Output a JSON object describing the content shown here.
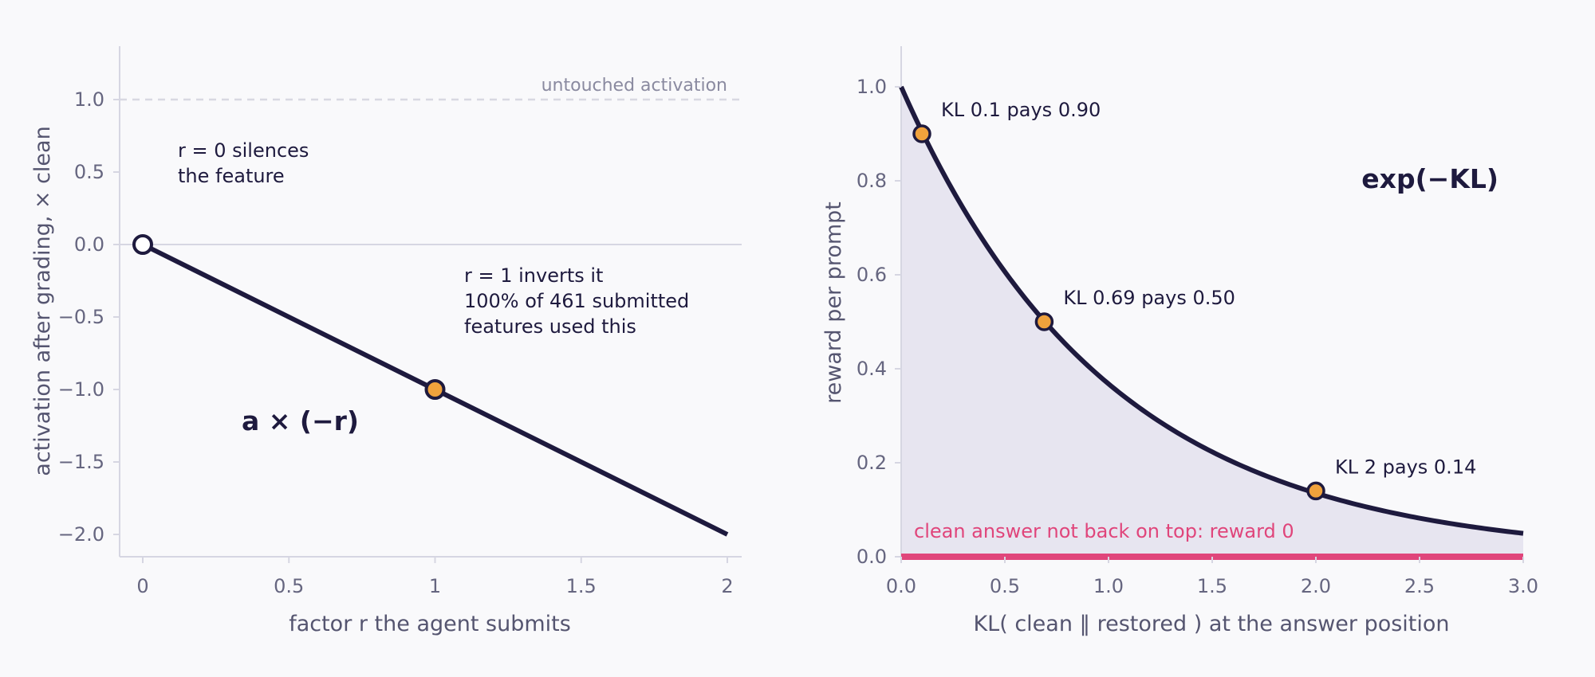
{
  "chart_data": [
    {
      "type": "line",
      "function": "y = -x",
      "x_range": [
        0,
        2
      ],
      "xlim": [
        -0.08,
        2.05
      ],
      "ylim": [
        -2.15,
        1.35
      ],
      "xlabel": "factor r the agent submits",
      "ylabel": "activation after grading, × clean",
      "xticks": [
        0,
        0.5,
        1,
        1.5,
        2
      ],
      "xtick_labels": [
        "0",
        "0.5",
        "1",
        "1.5",
        "2"
      ],
      "yticks": [
        1.0,
        0.5,
        0.0,
        -0.5,
        -1.0,
        -1.5,
        -2.0
      ],
      "ytick_labels": [
        "1.0",
        "0.5",
        "0.0",
        "−0.5",
        "−1.0",
        "−1.5",
        "−2.0"
      ],
      "series": [
        {
          "x": [
            0,
            2
          ],
          "y": [
            0,
            -2
          ]
        }
      ],
      "points": [
        {
          "x": 0,
          "y": 0,
          "style": "open"
        },
        {
          "x": 1,
          "y": -1,
          "style": "filled"
        }
      ],
      "reference_line": {
        "y": 1.0,
        "label": "untouched activation"
      },
      "zero_line": {
        "y": 0
      },
      "formula": "a × (−r)",
      "annotations": [
        {
          "lines": [
            "r = 0 silences",
            "the feature"
          ]
        },
        {
          "lines": [
            "r = 1 inverts it",
            "100% of 461 submitted",
            "features used this"
          ]
        }
      ],
      "grid": false
    },
    {
      "type": "area",
      "function": "y = exp(-x)",
      "x_range": [
        0,
        3
      ],
      "xlim": [
        0,
        3
      ],
      "ylim": [
        0,
        1.06
      ],
      "xlabel": "KL( clean ‖ restored ) at the answer position",
      "ylabel": "reward per prompt",
      "xticks": [
        0,
        0.5,
        1,
        1.5,
        2,
        2.5,
        3
      ],
      "xtick_labels": [
        "0.0",
        "0.5",
        "1.0",
        "1.5",
        "2.0",
        "2.5",
        "3.0"
      ],
      "yticks": [
        0,
        0.2,
        0.4,
        0.6,
        0.8,
        1.0
      ],
      "ytick_labels": [
        "0.0",
        "0.2",
        "0.4",
        "0.6",
        "0.8",
        "1.0"
      ],
      "points": [
        {
          "x": 0.1,
          "y": 0.9,
          "label": "KL 0.1 pays 0.90"
        },
        {
          "x": 0.69,
          "y": 0.5,
          "label": "KL 0.69 pays 0.50"
        },
        {
          "x": 2.0,
          "y": 0.14,
          "label": "KL 2 pays 0.14"
        }
      ],
      "zero_line": {
        "y": 0,
        "label": "clean answer not back on top: reward 0"
      },
      "formula": "exp(−KL)",
      "grid": false
    }
  ],
  "colors": {
    "background": "#f9f9fb",
    "line": "#1e1a3e",
    "marker_fill": "#f0a23c",
    "marker_open": "#ffffff",
    "area_fill": "#e7e5f0",
    "zero_reward": "#e0457b",
    "axis": "#d6d6e2",
    "ref_line": "#d8d8e2"
  }
}
